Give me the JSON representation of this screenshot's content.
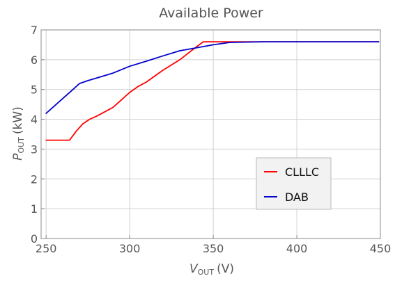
{
  "chart_data": {
    "type": "line",
    "title": "Available Power",
    "xlabel": {
      "main": "V",
      "sub": "OUT",
      "unit": "(V)"
    },
    "ylabel": {
      "main": "P",
      "sub": "OUT",
      "unit": "(kW)"
    },
    "xlim": [
      247,
      450
    ],
    "ylim": [
      0,
      7
    ],
    "xticks": [
      250,
      300,
      350,
      400,
      450
    ],
    "yticks": [
      0,
      1,
      2,
      3,
      4,
      5,
      6,
      7
    ],
    "grid": true,
    "legend_position": "bottom-right",
    "series": [
      {
        "name": "CLLLC",
        "color": "#ff0000",
        "x": [
          250,
          255,
          260,
          264,
          268,
          272,
          276,
          280,
          285,
          290,
          295,
          300,
          305,
          310,
          315,
          320,
          330,
          338,
          344,
          350,
          360,
          380,
          400,
          420,
          449
        ],
        "y": [
          3.3,
          3.3,
          3.3,
          3.3,
          3.6,
          3.85,
          4.0,
          4.1,
          4.25,
          4.4,
          4.65,
          4.9,
          5.1,
          5.25,
          5.45,
          5.65,
          6.0,
          6.35,
          6.6,
          6.6,
          6.6,
          6.6,
          6.6,
          6.6,
          6.6
        ]
      },
      {
        "name": "DAB",
        "color": "#0000cc",
        "x": [
          250,
          255,
          260,
          265,
          270,
          275,
          280,
          290,
          300,
          310,
          320,
          330,
          340,
          350,
          360,
          380,
          400,
          420,
          449
        ],
        "y": [
          4.2,
          4.45,
          4.7,
          4.95,
          5.2,
          5.3,
          5.38,
          5.55,
          5.78,
          5.95,
          6.13,
          6.3,
          6.4,
          6.5,
          6.58,
          6.6,
          6.6,
          6.6,
          6.6
        ]
      }
    ]
  }
}
